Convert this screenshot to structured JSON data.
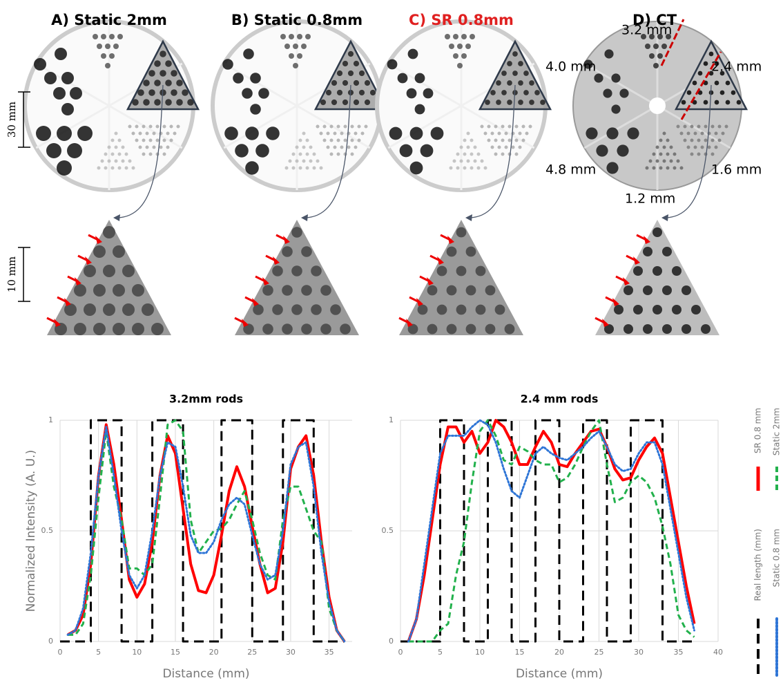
{
  "panels": [
    {
      "title": "A) Static 2mm"
    },
    {
      "title": "B) Static 0.8mm"
    },
    {
      "title": "C) SR 0.8mm"
    },
    {
      "title": "D) CT"
    }
  ],
  "scale_bars": [
    "30 mm",
    "10 mm"
  ],
  "ct_labels": [
    "3.2 mm",
    "2.4 mm",
    "4.0 mm",
    "4.8 mm",
    "1.2 mm",
    "1.6 mm"
  ],
  "chart_data": [
    {
      "type": "line",
      "title": "3.2mm rods",
      "xlabel": "Distance (mm)",
      "ylabel": "Normalized Intensity (A. U.)",
      "xlim": [
        0,
        38
      ],
      "xticks": [
        0,
        5,
        10,
        15,
        20,
        25,
        30,
        35
      ],
      "ylim": [
        0,
        1
      ],
      "yticks": [
        0,
        0.5,
        1
      ],
      "grid": true,
      "series": [
        {
          "name": "SR 0.8 mm",
          "color": "#ff0000",
          "style": "solid",
          "x": [
            1,
            2,
            3,
            4,
            5,
            6,
            7,
            8,
            9,
            10,
            11,
            12,
            13,
            14,
            15,
            16,
            17,
            18,
            19,
            20,
            21,
            22,
            23,
            24,
            25,
            26,
            27,
            28,
            29,
            30,
            31,
            32,
            33,
            34,
            35,
            36,
            37
          ],
          "values": [
            0.03,
            0.05,
            0.12,
            0.35,
            0.75,
            0.98,
            0.8,
            0.55,
            0.28,
            0.2,
            0.26,
            0.45,
            0.75,
            0.93,
            0.85,
            0.6,
            0.35,
            0.23,
            0.22,
            0.3,
            0.48,
            0.68,
            0.79,
            0.7,
            0.52,
            0.35,
            0.22,
            0.24,
            0.45,
            0.78,
            0.88,
            0.93,
            0.75,
            0.45,
            0.2,
            0.05,
            0
          ]
        },
        {
          "name": "Static 2mm",
          "color": "#22b14c",
          "style": "dashed",
          "x": [
            1,
            2,
            3,
            4,
            5,
            6,
            7,
            8,
            9,
            10,
            11,
            12,
            13,
            14,
            15,
            16,
            17,
            18,
            19,
            20,
            21,
            22,
            23,
            24,
            25,
            26,
            27,
            28,
            29,
            30,
            31,
            32,
            33,
            34,
            35,
            36,
            37
          ],
          "values": [
            0.03,
            0.03,
            0.08,
            0.3,
            0.65,
            0.95,
            0.7,
            0.55,
            0.33,
            0.33,
            0.3,
            0.35,
            0.65,
            0.98,
            1,
            0.95,
            0.55,
            0.4,
            0.45,
            0.5,
            0.51,
            0.55,
            0.62,
            0.68,
            0.55,
            0.4,
            0.3,
            0.28,
            0.55,
            0.7,
            0.7,
            0.6,
            0.5,
            0.45,
            0.15,
            0.05,
            0
          ]
        },
        {
          "name": "Real length (mm)",
          "color": "#000000",
          "style": "bars",
          "x": [
            0,
            4,
            4,
            8,
            8,
            12,
            12,
            16,
            16,
            21,
            21,
            25,
            25,
            29,
            29,
            33,
            33,
            37
          ],
          "values": [
            0,
            0,
            1,
            1,
            0,
            0,
            1,
            1,
            0,
            0,
            1,
            1,
            0,
            0,
            1,
            1,
            0,
            0
          ]
        },
        {
          "name": "Static 0.8 mm",
          "color": "#2e75d6",
          "style": "dotted",
          "x": [
            1,
            2,
            3,
            4,
            5,
            6,
            7,
            8,
            9,
            10,
            11,
            12,
            13,
            14,
            15,
            16,
            17,
            18,
            19,
            20,
            21,
            22,
            23,
            24,
            25,
            26,
            27,
            28,
            29,
            30,
            31,
            32,
            33,
            34,
            35,
            36,
            37
          ],
          "values": [
            0.03,
            0.05,
            0.15,
            0.4,
            0.75,
            0.97,
            0.75,
            0.5,
            0.3,
            0.24,
            0.3,
            0.5,
            0.75,
            0.9,
            0.88,
            0.7,
            0.48,
            0.4,
            0.4,
            0.45,
            0.55,
            0.62,
            0.65,
            0.62,
            0.48,
            0.35,
            0.28,
            0.3,
            0.5,
            0.8,
            0.88,
            0.9,
            0.7,
            0.4,
            0.18,
            0.05,
            0
          ]
        }
      ]
    },
    {
      "type": "line",
      "title": "2.4 mm rods",
      "xlabel": "Distance (mm)",
      "xlim": [
        0,
        40
      ],
      "xticks": [
        0,
        5,
        10,
        15,
        20,
        25,
        30,
        35,
        40
      ],
      "ylim": [
        0,
        1
      ],
      "yticks": [
        0,
        0.5,
        1
      ],
      "grid": true,
      "legend": "right",
      "series": [
        {
          "name": "SR 0.8 mm",
          "color": "#ff0000",
          "style": "solid",
          "x": [
            1,
            2,
            3,
            4,
            5,
            6,
            7,
            8,
            9,
            10,
            11,
            12,
            13,
            14,
            15,
            16,
            17,
            18,
            19,
            20,
            21,
            22,
            23,
            24,
            25,
            26,
            27,
            28,
            29,
            30,
            31,
            32,
            33,
            34,
            35,
            36,
            37
          ],
          "values": [
            0,
            0.1,
            0.3,
            0.55,
            0.8,
            0.97,
            0.97,
            0.9,
            0.95,
            0.85,
            0.9,
            1,
            0.97,
            0.9,
            0.8,
            0.8,
            0.88,
            0.95,
            0.9,
            0.8,
            0.79,
            0.85,
            0.9,
            0.95,
            0.96,
            0.88,
            0.78,
            0.73,
            0.74,
            0.82,
            0.88,
            0.92,
            0.85,
            0.65,
            0.45,
            0.25,
            0.08
          ]
        },
        {
          "name": "Static 2mm",
          "color": "#22b14c",
          "style": "dashed",
          "x": [
            1,
            2,
            3,
            4,
            5,
            6,
            7,
            8,
            9,
            10,
            11,
            12,
            13,
            14,
            15,
            16,
            17,
            18,
            19,
            20,
            21,
            22,
            23,
            24,
            25,
            26,
            27,
            28,
            29,
            30,
            31,
            32,
            33,
            34,
            35,
            36,
            37
          ],
          "values": [
            0,
            0,
            0,
            0,
            0.05,
            0.08,
            0.3,
            0.45,
            0.72,
            0.95,
            1,
            0.93,
            0.82,
            0.8,
            0.88,
            0.86,
            0.82,
            0.8,
            0.8,
            0.72,
            0.74,
            0.8,
            0.88,
            0.95,
            1,
            0.8,
            0.63,
            0.65,
            0.72,
            0.75,
            0.72,
            0.65,
            0.52,
            0.35,
            0.12,
            0.05,
            0.02
          ]
        },
        {
          "name": "Real length (mm)",
          "color": "#000000",
          "style": "bars",
          "x": [
            0,
            5,
            5,
            8,
            8,
            11,
            11,
            14,
            14,
            17,
            17,
            20,
            20,
            23,
            23,
            26,
            26,
            29,
            29,
            33,
            33,
            37
          ],
          "values": [
            0,
            0,
            1,
            1,
            0,
            0,
            1,
            1,
            0,
            0,
            1,
            1,
            0,
            0,
            1,
            1,
            0,
            0,
            1,
            1,
            0,
            0
          ]
        },
        {
          "name": "Static 0.8 mm",
          "color": "#2e75d6",
          "style": "dotted",
          "x": [
            1,
            2,
            3,
            4,
            5,
            6,
            7,
            8,
            9,
            10,
            11,
            12,
            13,
            14,
            15,
            16,
            17,
            18,
            19,
            20,
            21,
            22,
            23,
            24,
            25,
            26,
            27,
            28,
            29,
            30,
            31,
            32,
            33,
            34,
            35,
            36,
            37
          ],
          "values": [
            0,
            0.1,
            0.35,
            0.6,
            0.85,
            0.93,
            0.93,
            0.93,
            0.97,
            1,
            0.98,
            0.9,
            0.78,
            0.68,
            0.65,
            0.75,
            0.85,
            0.88,
            0.85,
            0.83,
            0.82,
            0.85,
            0.88,
            0.92,
            0.95,
            0.88,
            0.8,
            0.77,
            0.78,
            0.85,
            0.9,
            0.9,
            0.8,
            0.6,
            0.4,
            0.2,
            0.05
          ]
        }
      ]
    }
  ]
}
